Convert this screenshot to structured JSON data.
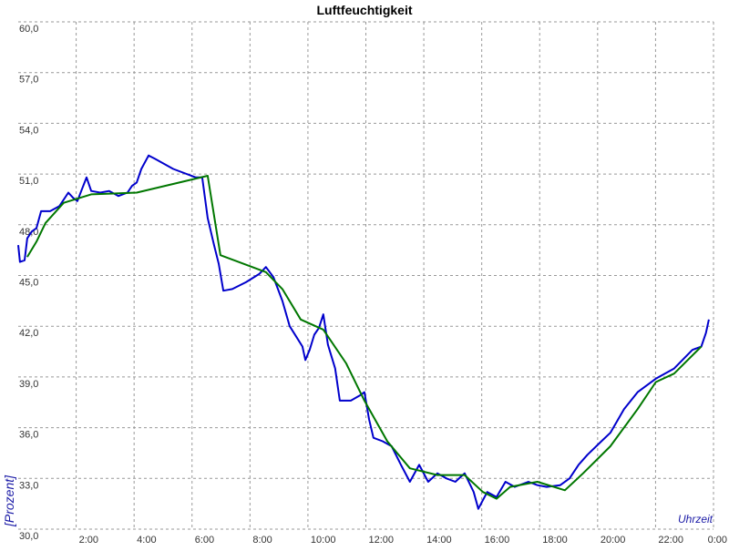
{
  "chart_data": {
    "type": "line",
    "title": "Luftfeuchtigkeit",
    "x_label": "Uhrzeit",
    "y_label": "[Prozent]",
    "xlim": [
      0,
      24
    ],
    "ylim": [
      30,
      60
    ],
    "grid": true,
    "xticks": [
      {
        "value": 2,
        "label": "2:00"
      },
      {
        "value": 4,
        "label": "4:00"
      },
      {
        "value": 6,
        "label": "6:00"
      },
      {
        "value": 8,
        "label": "8:00"
      },
      {
        "value": 10,
        "label": "10:00"
      },
      {
        "value": 12,
        "label": "12:00"
      },
      {
        "value": 14,
        "label": "14:00"
      },
      {
        "value": 16,
        "label": "16:00"
      },
      {
        "value": 18,
        "label": "18:00"
      },
      {
        "value": 20,
        "label": "20:00"
      },
      {
        "value": 22,
        "label": "22:00"
      },
      {
        "value": 24,
        "label": "0:00"
      }
    ],
    "yticks": [
      {
        "value": 30,
        "label": "30,0"
      },
      {
        "value": 33,
        "label": "33,0"
      },
      {
        "value": 36,
        "label": "36,0"
      },
      {
        "value": 39,
        "label": "39,0"
      },
      {
        "value": 42,
        "label": "42,0"
      },
      {
        "value": 45,
        "label": "45,0"
      },
      {
        "value": 48,
        "label": "48,0"
      },
      {
        "value": 51,
        "label": "51,0"
      },
      {
        "value": 54,
        "label": "54,0"
      },
      {
        "value": 57,
        "label": "57,0"
      },
      {
        "value": 60,
        "label": "60,0"
      }
    ],
    "series": [
      {
        "color": "#0000cc",
        "x": [
          0.0,
          0.06,
          0.22,
          0.31,
          0.47,
          0.63,
          0.79,
          1.1,
          1.42,
          1.73,
          1.89,
          2.04,
          2.2,
          2.36,
          2.52,
          2.83,
          3.14,
          3.46,
          3.77,
          3.93,
          4.09,
          4.25,
          4.5,
          4.72,
          5.35,
          6.13,
          6.35,
          6.54,
          6.76,
          6.92,
          7.08,
          7.39,
          7.86,
          8.33,
          8.55,
          8.81,
          9.12,
          9.37,
          9.59,
          9.81,
          9.91,
          10.06,
          10.22,
          10.38,
          10.53,
          10.69,
          10.94,
          11.1,
          11.48,
          11.79,
          11.95,
          12.11,
          12.26,
          12.58,
          12.89,
          13.21,
          13.52,
          13.84,
          14.15,
          14.47,
          14.78,
          15.09,
          15.41,
          15.72,
          15.88,
          16.19,
          16.51,
          16.82,
          17.14,
          17.61,
          17.92,
          18.24,
          18.71,
          19.03,
          19.34,
          19.65,
          20.13,
          20.44,
          20.91,
          21.38,
          22.01,
          22.64,
          23.27,
          23.58,
          23.74,
          23.84
        ],
        "values": [
          46.8,
          45.8,
          45.9,
          47.2,
          47.6,
          47.8,
          48.8,
          48.8,
          49.1,
          49.9,
          49.6,
          49.4,
          50.1,
          50.8,
          50.0,
          49.9,
          50.0,
          49.7,
          49.9,
          50.3,
          50.5,
          51.3,
          52.1,
          51.9,
          51.3,
          50.8,
          50.8,
          48.4,
          46.8,
          45.7,
          44.1,
          44.2,
          44.6,
          45.1,
          45.5,
          44.9,
          43.5,
          42.0,
          41.4,
          40.8,
          40.0,
          40.6,
          41.5,
          41.9,
          42.7,
          40.9,
          39.5,
          37.6,
          37.6,
          37.9,
          38.1,
          36.5,
          35.4,
          35.2,
          34.9,
          33.8,
          32.8,
          33.8,
          32.8,
          33.3,
          33.0,
          32.8,
          33.3,
          32.2,
          31.2,
          32.2,
          31.9,
          32.8,
          32.5,
          32.8,
          32.6,
          32.5,
          32.6,
          33.0,
          33.8,
          34.4,
          35.2,
          35.7,
          37.1,
          38.1,
          38.9,
          39.5,
          40.6,
          40.8,
          41.6,
          42.4
        ]
      },
      {
        "color": "#007700",
        "x": [
          0.31,
          0.63,
          0.94,
          1.57,
          2.52,
          4.09,
          6.54,
          6.98,
          8.55,
          9.12,
          9.75,
          10.53,
          11.32,
          11.95,
          12.74,
          13.52,
          14.47,
          15.41,
          16.04,
          16.51,
          16.98,
          17.92,
          18.87,
          19.5,
          20.44,
          21.38,
          22.01,
          22.64,
          23.58
        ],
        "values": [
          46.1,
          47.0,
          48.1,
          49.3,
          49.8,
          49.9,
          50.9,
          46.2,
          45.2,
          44.2,
          42.4,
          41.8,
          39.8,
          37.6,
          35.2,
          33.6,
          33.2,
          33.2,
          32.2,
          31.8,
          32.5,
          32.8,
          32.3,
          33.3,
          34.9,
          37.1,
          38.7,
          39.2,
          40.8
        ]
      }
    ]
  }
}
